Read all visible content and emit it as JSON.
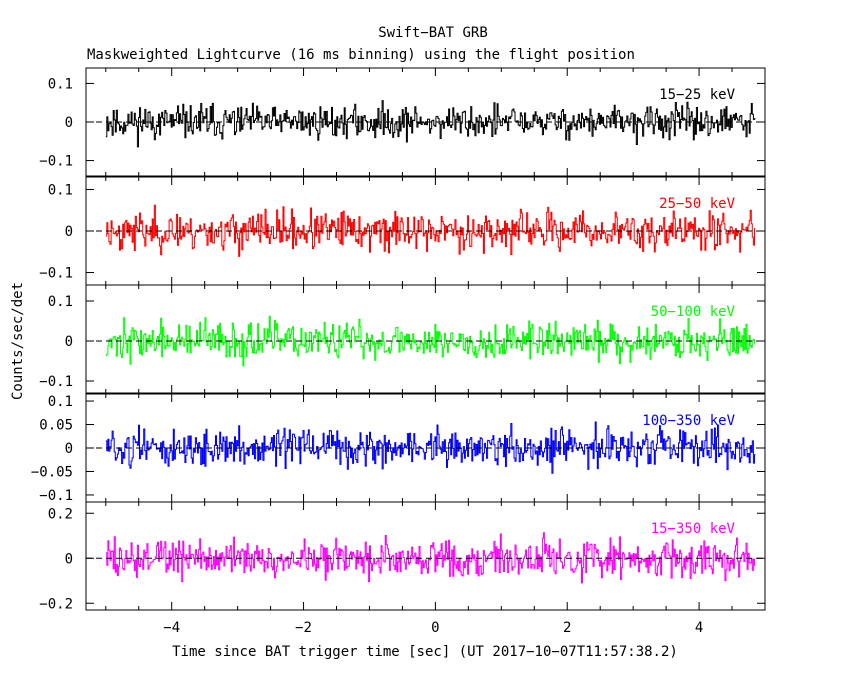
{
  "chart_data": {
    "type": "line",
    "title": "Swift−BAT GRB",
    "subtitle": "Maskweighted Lightcurve (16 ms binning) using the flight position",
    "xlabel": "Time since BAT trigger time [sec] (UT 2017−10−07T11:57:38.2)",
    "ylabel": "Counts/sec/det",
    "xlim": [
      -5.3,
      5.0
    ],
    "x_ticks": [
      -4,
      -2,
      0,
      2,
      4
    ],
    "x_tick_labels": [
      "−4",
      "−2",
      "0",
      "2",
      "4"
    ],
    "data_x_range": [
      -5.0,
      4.85
    ],
    "bin_width_s": 0.016,
    "panels": [
      {
        "name": "15−25 keV",
        "label": "15−25 keV",
        "color": "#000000",
        "ylim": [
          -0.14,
          0.14
        ],
        "y_ticks": [
          -0.1,
          0,
          0.1
        ],
        "y_tick_labels": [
          "−0.1",
          "0",
          "0.1"
        ],
        "noise_amplitude": 0.06,
        "seed": 11
      },
      {
        "name": "25−50 keV",
        "label": "25−50 keV",
        "color": "#ff0000",
        "ylim": [
          -0.13,
          0.13
        ],
        "y_ticks": [
          -0.1,
          0,
          0.1
        ],
        "y_tick_labels": [
          "−0.1",
          "0",
          "0.1"
        ],
        "noise_amplitude": 0.065,
        "seed": 23
      },
      {
        "name": "50−100 keV",
        "label": "50−100 keV",
        "color": "#00ff00",
        "ylim": [
          -0.13,
          0.14
        ],
        "y_ticks": [
          -0.1,
          0,
          0.1
        ],
        "y_tick_labels": [
          "−0.1",
          "0",
          "0.1"
        ],
        "noise_amplitude": 0.065,
        "seed": 37
      },
      {
        "name": "100−350 keV",
        "label": "100−350 keV",
        "color": "#0000ff",
        "ylim": [
          -0.115,
          0.115
        ],
        "y_ticks": [
          -0.1,
          -0.05,
          0,
          0.05,
          0.1
        ],
        "y_tick_labels": [
          "−0.1",
          "−0.05",
          "0",
          "0.05",
          "0.1"
        ],
        "noise_amplitude": 0.055,
        "seed": 51
      },
      {
        "name": "15−350 keV",
        "label": "15−350 keV",
        "color": "#ff00ff",
        "ylim": [
          -0.23,
          0.25
        ],
        "y_ticks": [
          -0.2,
          0,
          0.2
        ],
        "y_tick_labels": [
          "−0.2",
          "0",
          "0.2"
        ],
        "noise_amplitude": 0.12,
        "seed": 73
      }
    ]
  }
}
